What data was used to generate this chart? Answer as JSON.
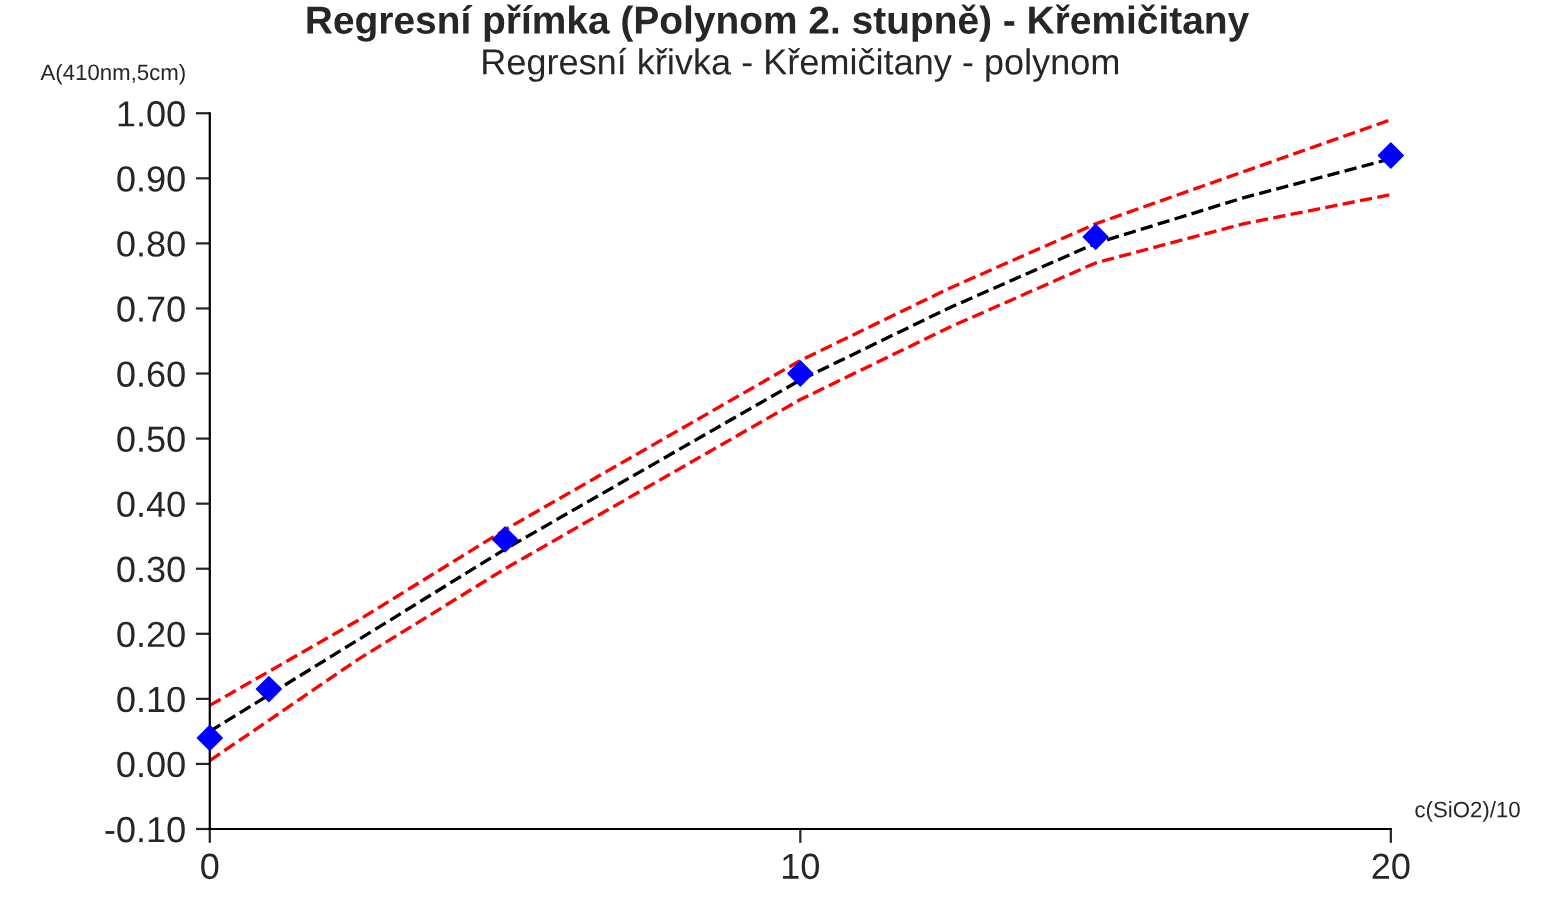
{
  "chart_data": {
    "type": "scatter",
    "title": "Regresní přímka (Polynom 2. stupně) - Křemičitany",
    "subtitle": "Regresní křivka - Křemičitany - polynom",
    "xlabel": "c(SiO2)/10",
    "ylabel": "A(410nm,5cm)",
    "xlim": [
      0,
      20
    ],
    "xticks": [
      0,
      10,
      20
    ],
    "ylim": [
      -0.1,
      1.0
    ],
    "yticks": [
      {
        "value": -0.1,
        "label": "-0.10"
      },
      {
        "value": 0,
        "label": "0.00"
      },
      {
        "value": 0.1,
        "label": "0.10"
      },
      {
        "value": 0.2,
        "label": "0.20"
      },
      {
        "value": 0.3,
        "label": "0.30"
      },
      {
        "value": 0.4,
        "label": "0.40"
      },
      {
        "value": 0.5,
        "label": "0.50"
      },
      {
        "value": 0.6,
        "label": "0.60"
      },
      {
        "value": 0.7,
        "label": "0.70"
      },
      {
        "value": 0.8,
        "label": "0.80"
      },
      {
        "value": 0.9,
        "label": "0.90"
      },
      {
        "value": 1.0,
        "label": "1.00"
      }
    ],
    "grid": false,
    "series": [
      {
        "type": "line",
        "color": "#ff0000",
        "line_style": "dashed",
        "marker": "none",
        "x": [
          0,
          2.5,
          5,
          7.5,
          10,
          12.5,
          15,
          17.5,
          20
        ],
        "values": [
          0.09,
          0.22,
          0.36,
          0.49,
          0.62,
          0.73,
          0.83,
          0.91,
          0.99
        ]
      },
      {
        "type": "line",
        "color": "#000000",
        "line_style": "dashed",
        "marker": "none",
        "x": [
          0,
          2.5,
          5,
          7.5,
          10,
          12.5,
          15,
          17.5,
          20
        ],
        "values": [
          0.05,
          0.19,
          0.33,
          0.46,
          0.59,
          0.7,
          0.8,
          0.87,
          0.93
        ]
      },
      {
        "type": "line",
        "color": "#ff0000",
        "line_style": "dashed",
        "marker": "none",
        "x": [
          0,
          2.5,
          5,
          7.5,
          10,
          12.5,
          15,
          17.5,
          20
        ],
        "values": [
          0.005,
          0.16,
          0.3,
          0.43,
          0.56,
          0.67,
          0.77,
          0.83,
          0.875
        ]
      },
      {
        "color": "#0000ff",
        "marker": "diamond",
        "x": [
          0,
          1,
          5,
          10,
          15,
          20
        ],
        "values": [
          0.04,
          0.115,
          0.345,
          0.6,
          0.81,
          0.935
        ]
      }
    ]
  }
}
